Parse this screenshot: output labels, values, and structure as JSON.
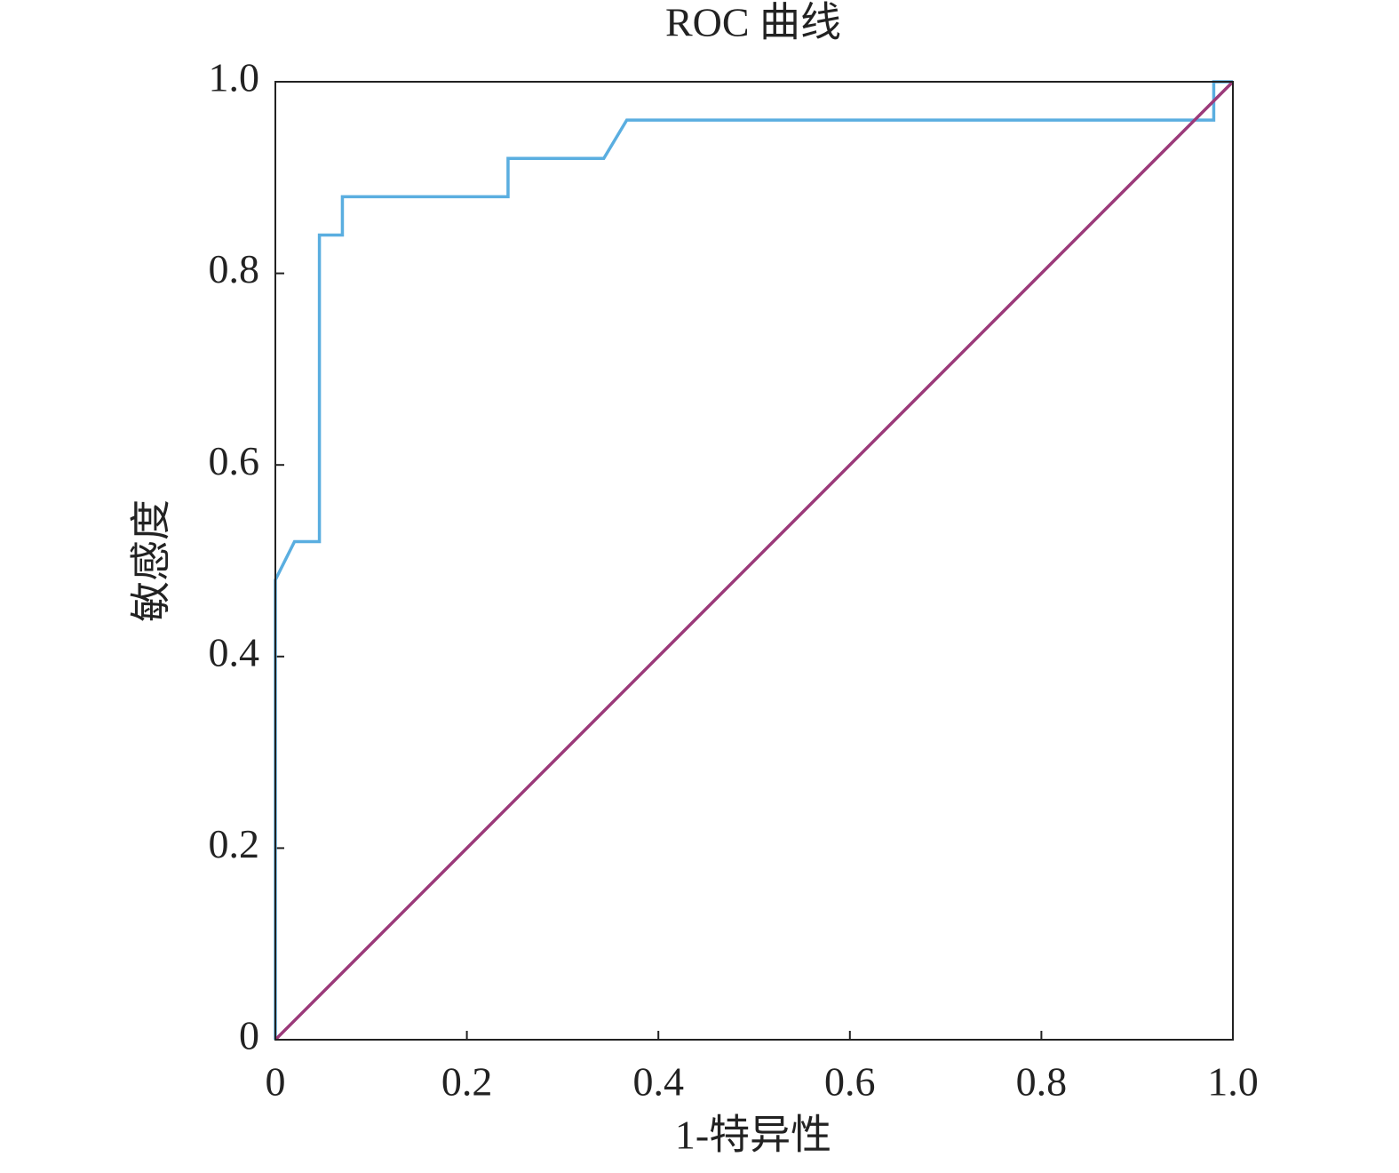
{
  "chart_data": {
    "type": "line",
    "title": "ROC 曲线",
    "x_label": "1-特异性",
    "y_label": "敏感度",
    "series": [
      {
        "color": "#5aaee0",
        "x": [
          0,
          0,
          0.02,
          0.046,
          0.046,
          0.07,
          0.07,
          0.243,
          0.243,
          0.343,
          0.367,
          0.98,
          0.98,
          1
        ],
        "values": [
          0,
          0.48,
          0.52,
          0.52,
          0.84,
          0.84,
          0.88,
          0.88,
          0.92,
          0.92,
          0.96,
          0.96,
          1,
          1
        ]
      },
      {
        "color": "#9b3a7a",
        "x": [
          0,
          1
        ],
        "values": [
          0,
          1
        ]
      }
    ],
    "xlim": [
      0,
      1
    ],
    "ylim": [
      0,
      1
    ],
    "xticks": [
      0,
      0.2,
      0.4,
      0.6,
      0.8,
      {
        "value": 1,
        "label": "1.0"
      }
    ],
    "yticks": [
      0,
      0.2,
      0.4,
      0.6,
      0.8,
      {
        "value": 1,
        "label": "1.0"
      }
    ]
  }
}
